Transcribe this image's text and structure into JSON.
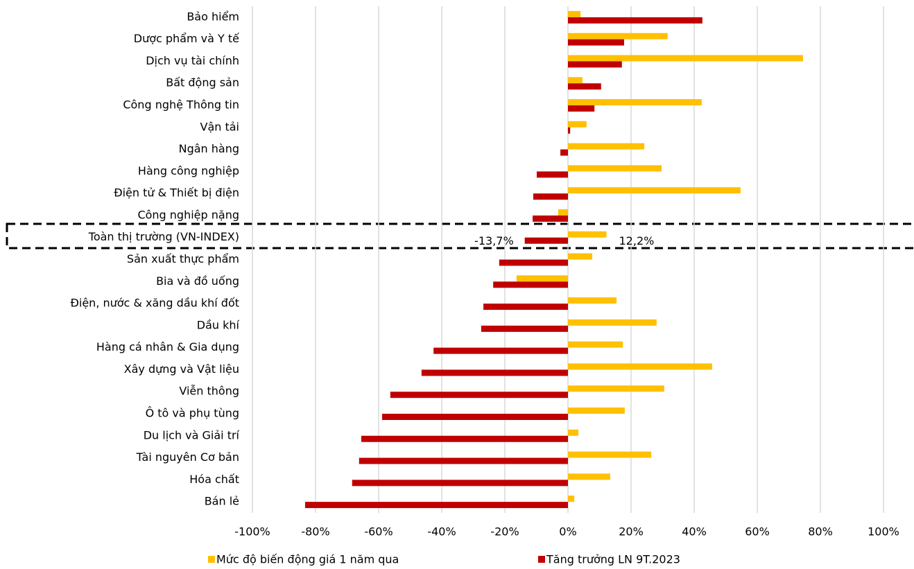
{
  "chart_data": {
    "type": "barh",
    "categories": [
      "Bảo hiểm",
      "Dược phẩm và Y tế",
      "Dịch vụ tài chính",
      "Bất động sản",
      "Công nghệ Thông tin",
      "Vận tải",
      "Ngân hàng",
      "Hàng công nghiệp",
      "Điện tử & Thiết bị điện",
      "Công nghiệp nặng",
      "Toàn thị trường (VN-INDEX)",
      "Sản xuất thực phẩm",
      "Bia và đồ uống",
      "Điện, nước & xăng dầu khí đốt",
      "Dầu khí",
      "Hàng cá nhân & Gia dụng",
      "Xây dựng và Vật liệu",
      "Viễn thông",
      "Ô tô và phụ tùng",
      "Du lịch và Giải trí",
      "Tài nguyên Cơ bản",
      "Hóa chất",
      "Bán lẻ"
    ],
    "series": [
      {
        "name": "Mức độ biến động giá 1 năm qua",
        "color": "#ffc000",
        "values": [
          4,
          31.6,
          74.5,
          4.6,
          42.4,
          5.9,
          24.2,
          29.7,
          54.7,
          -3.1,
          12.2,
          7.7,
          -16.3,
          15.4,
          28.1,
          17.4,
          45.7,
          30.5,
          18,
          3.3,
          26.4,
          13.4,
          2
        ],
        "value_labels": [
          null,
          null,
          null,
          null,
          null,
          null,
          null,
          null,
          null,
          null,
          "12,2%",
          null,
          null,
          null,
          null,
          null,
          null,
          null,
          null,
          null,
          null,
          null,
          null
        ]
      },
      {
        "name": "Tăng trưởng LN 9T.2023",
        "color": "#c00000",
        "values": [
          42.6,
          17.8,
          17.1,
          10.5,
          8.4,
          0.7,
          -2.4,
          -9.9,
          -11,
          -11.2,
          -13.7,
          -21.8,
          -23.7,
          -26.8,
          -27.5,
          -42.6,
          -46.4,
          -56.3,
          -58.9,
          -65.5,
          -66.2,
          -68.4,
          -83.3
        ],
        "value_labels": [
          null,
          null,
          null,
          null,
          null,
          null,
          null,
          null,
          null,
          null,
          "-13,7%",
          null,
          null,
          null,
          null,
          null,
          null,
          null,
          null,
          null,
          null,
          null,
          null
        ]
      }
    ],
    "xlim": [
      -100,
      100
    ],
    "xticks": [
      {
        "value": -100,
        "label": "-100%"
      },
      {
        "value": -80,
        "label": "-80%"
      },
      {
        "value": -60,
        "label": "-60%"
      },
      {
        "value": -40,
        "label": "-40%"
      },
      {
        "value": -20,
        "label": "-20%"
      },
      {
        "value": 0,
        "label": "0%"
      },
      {
        "value": 20,
        "label": "20%"
      },
      {
        "value": 40,
        "label": "40%"
      },
      {
        "value": 60,
        "label": "60%"
      },
      {
        "value": 80,
        "label": "80%"
      },
      {
        "value": 100,
        "label": "100%"
      }
    ],
    "grid": true,
    "legend": "bottom"
  }
}
